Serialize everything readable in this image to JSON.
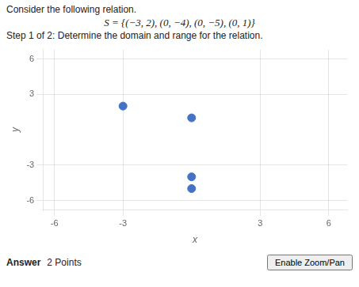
{
  "chart_data": {
    "type": "scatter",
    "title": "Consider the following relation.",
    "subtitle": "S = {(−3, 2), (0, −4), (0, −5), (0, 1)}",
    "annotations": [
      "Step 1 of 2: Determine the domain and range for the relation.",
      "Enable Zoom/Pan",
      "Answer",
      "2 Points"
    ],
    "x": [
      -3,
      0,
      0,
      0
    ],
    "values": [
      2,
      1,
      -4,
      -5
    ],
    "color": "#4472c4",
    "xlabel": "x",
    "ylabel": "y",
    "xlim": [
      -6.5,
      6.8
    ],
    "ylim": [
      -6.8,
      6.8
    ],
    "xticks": [
      -6,
      -3,
      3,
      6
    ],
    "yticks": [
      -6,
      -3,
      3,
      6
    ],
    "grid": true
  }
}
